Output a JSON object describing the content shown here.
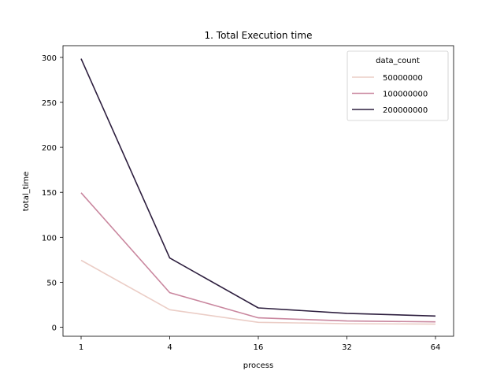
{
  "chart_data": {
    "type": "line",
    "title": "1. Total Execution time",
    "xlabel": "process",
    "ylabel": "total_time",
    "categories": [
      "1",
      "4",
      "16",
      "32",
      "64"
    ],
    "y_ticks": [
      0,
      50,
      100,
      150,
      200,
      250,
      300
    ],
    "ylim": [
      -10,
      313
    ],
    "legend": {
      "title": "data_count",
      "placement": "top-right"
    },
    "series": [
      {
        "name": "50000000",
        "color": "#ebcdc6",
        "values": [
          74.5,
          19.5,
          5.5,
          4.0,
          3.5
        ]
      },
      {
        "name": "100000000",
        "color": "#c9869e",
        "values": [
          149.5,
          38.5,
          10.5,
          7.0,
          6.0
        ]
      },
      {
        "name": "200000000",
        "color": "#2d1e3e",
        "values": [
          298.5,
          77.0,
          21.5,
          15.5,
          12.5
        ]
      }
    ],
    "grid": false
  }
}
